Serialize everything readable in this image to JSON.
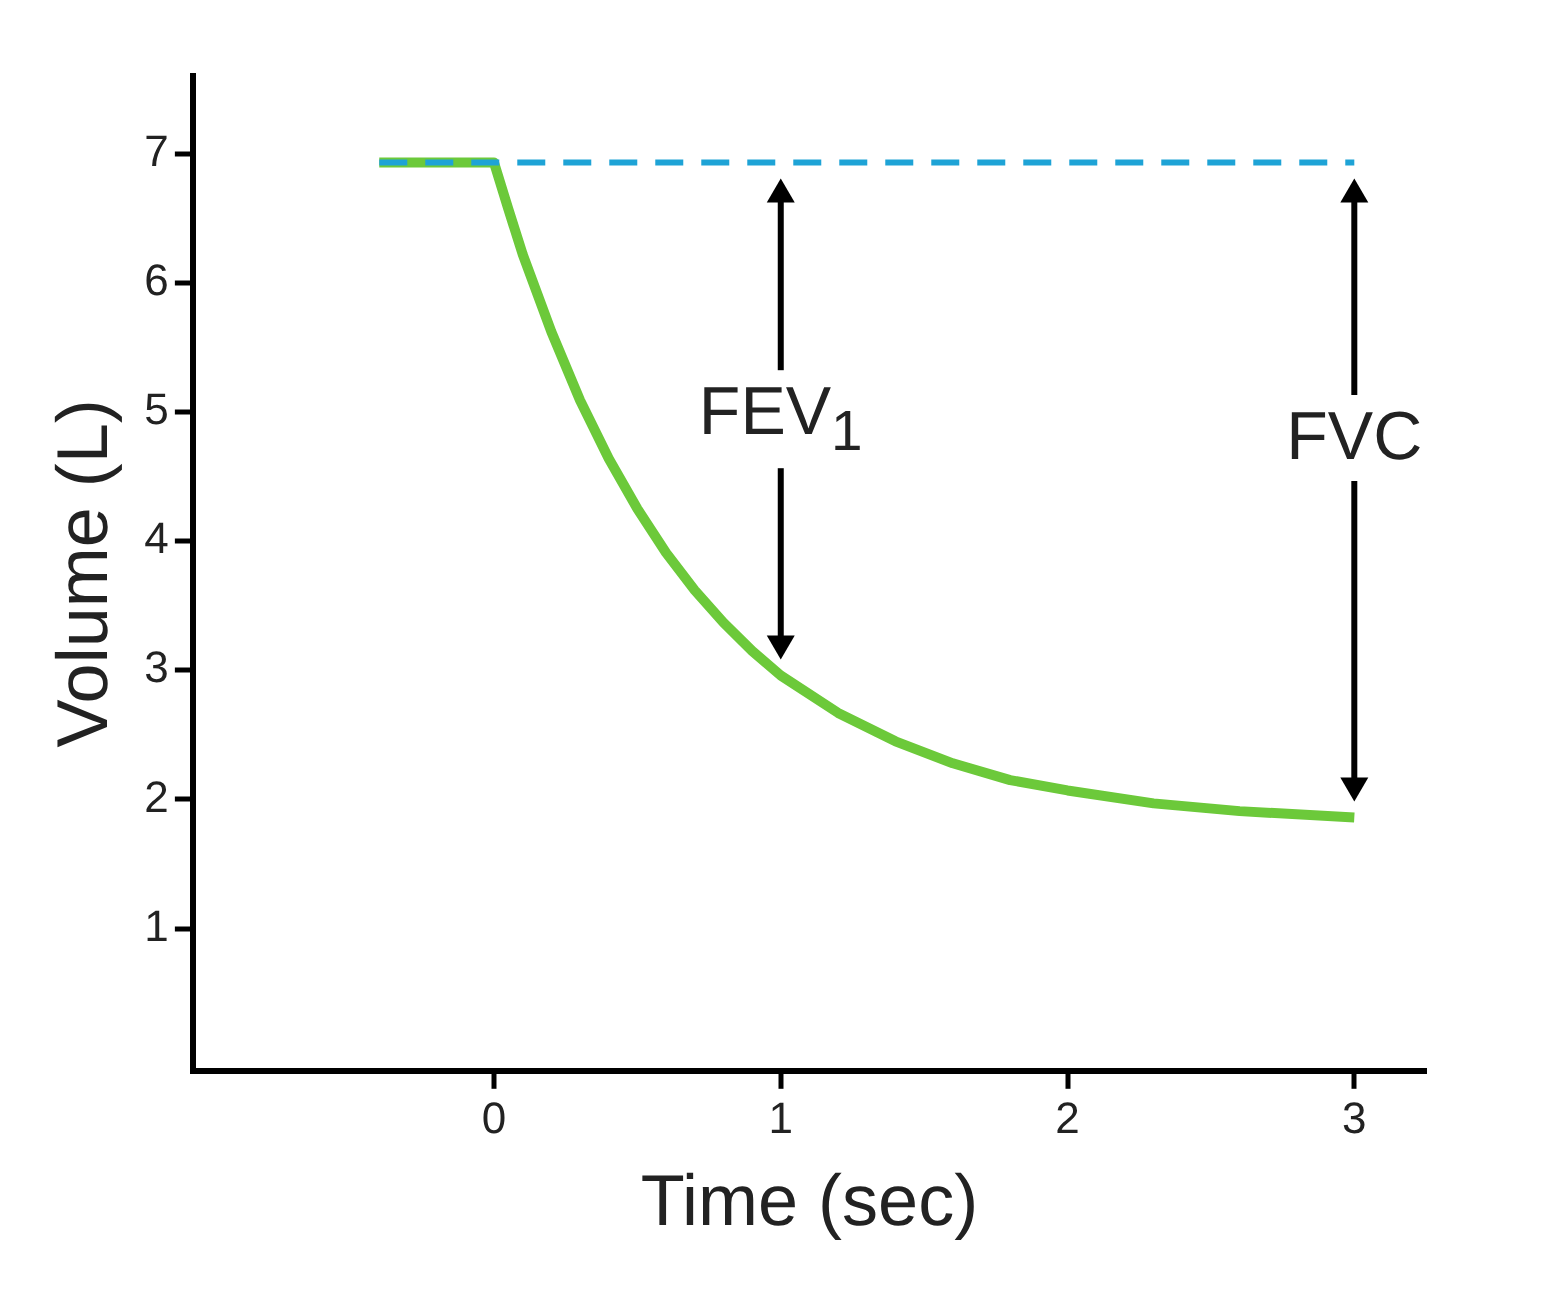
{
  "chart_data": {
    "type": "line",
    "xlabel": "Time (sec)",
    "ylabel": "Volume (L)",
    "xlim": [
      -1.05,
      3.25
    ],
    "xticks": [
      0,
      1,
      2,
      3
    ],
    "ylim": [
      -0.1,
      7.6
    ],
    "yticks": [
      1,
      2,
      3,
      4,
      5,
      6,
      7
    ],
    "grid": false,
    "legend": false,
    "marker": "none",
    "series": [
      {
        "color": "#1ea3d6",
        "line_style": "dashed",
        "x": [
          -0.4,
          3
        ],
        "values": [
          6.93,
          6.93
        ]
      },
      {
        "color": "#6cc93a",
        "line_style": "solid",
        "x": [
          -0.4,
          0,
          0.05,
          0.1,
          0.2,
          0.3,
          0.4,
          0.5,
          0.6,
          0.7,
          0.8,
          0.9,
          1,
          1.2,
          1.4,
          1.6,
          1.8,
          2,
          2.3,
          2.6,
          3
        ],
        "values": [
          6.93,
          6.93,
          6.57,
          6.22,
          5.62,
          5.09,
          4.64,
          4.25,
          3.91,
          3.62,
          3.37,
          3.15,
          2.96,
          2.67,
          2.45,
          2.28,
          2.15,
          2.07,
          1.97,
          1.91,
          1.86
        ]
      }
    ],
    "annotations": [
      "FEV$_{1}$",
      "FVC"
    ]
  }
}
